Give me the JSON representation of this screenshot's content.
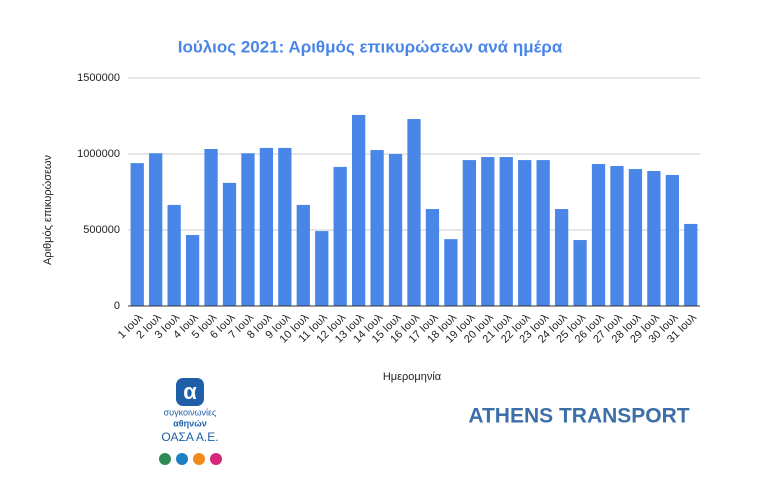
{
  "chart_data": {
    "type": "bar",
    "title": "Ιούλιος 2021: Αριθμός επικυρώσεων ανά ημέρα",
    "x_label": "Ημερομηνία",
    "y_label": "Αριθμός επικυρώσεων",
    "categories": [
      "1 Ιουλ",
      "2 Ιουλ",
      "3 Ιουλ",
      "4 Ιουλ",
      "5 Ιουλ",
      "6 Ιουλ",
      "7 Ιουλ",
      "8 Ιουλ",
      "9 Ιουλ",
      "10 Ιουλ",
      "11 Ιουλ",
      "12 Ιουλ",
      "13 Ιουλ",
      "14 Ιουλ",
      "15 Ιουλ",
      "16 Ιουλ",
      "17 Ιουλ",
      "18 Ιουλ",
      "19 Ιουλ",
      "20 Ιουλ",
      "21 Ιουλ",
      "22 Ιουλ",
      "23 Ιουλ",
      "24 Ιουλ",
      "25 Ιουλ",
      "26 Ιουλ",
      "27 Ιουλ",
      "28 Ιουλ",
      "29 Ιουλ",
      "30 Ιουλ",
      "31 Ιουλ"
    ],
    "values": [
      940000,
      1005000,
      665000,
      467000,
      1033000,
      810000,
      1005000,
      1040000,
      1040000,
      665000,
      493000,
      915000,
      1257000,
      1026000,
      1000000,
      1230000,
      638000,
      440000,
      960000,
      980000,
      980000,
      960000,
      960000,
      638000,
      434000,
      934000,
      921000,
      901000,
      888000,
      862000,
      540000
    ],
    "color": "#4a86e8",
    "ylim": [
      0,
      1500000
    ],
    "yticks": [
      0,
      500000,
      1000000,
      1500000
    ],
    "grid": true
  },
  "logos": {
    "line1": "συγκοινωνίες",
    "line2": "αθηνών",
    "line3": "ΟΑΣΑ Α.Ε.",
    "brand": "ATHENS TRANSPORT"
  }
}
